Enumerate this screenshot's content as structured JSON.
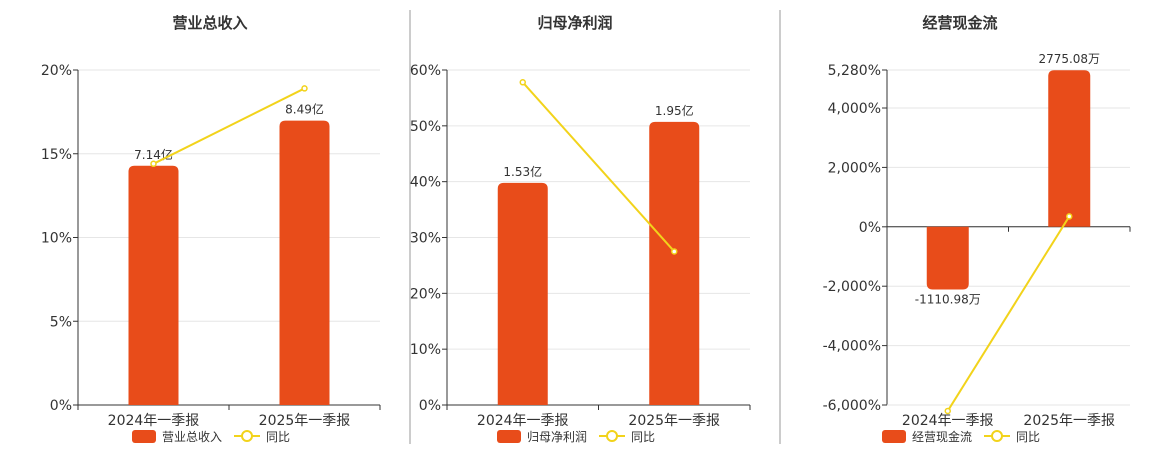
{
  "colors": {
    "bar": "#e84c1a",
    "line": "#f2d31b",
    "axis": "#333333",
    "grid": "#e6e6e6",
    "divider": "#999999"
  },
  "chart_data": [
    {
      "type": "bar",
      "title": "营业总收入",
      "categories": [
        "2024年一季报",
        "2025年一季报"
      ],
      "series": [
        {
          "name": "营业总收入",
          "kind": "bar",
          "values": [
            7.14,
            8.49
          ],
          "value_labels": [
            "7.14亿",
            "8.49亿"
          ],
          "unit": "亿"
        },
        {
          "name": "同比",
          "kind": "line",
          "values": [
            14.4,
            18.9
          ],
          "unit": "%"
        }
      ],
      "y_ticks": [
        "0%",
        "5%",
        "10%",
        "15%",
        "20%"
      ],
      "ylim": [
        0,
        20
      ],
      "grid": true,
      "legend": "bottom"
    },
    {
      "type": "bar",
      "title": "归母净利润",
      "categories": [
        "2024年一季报",
        "2025年一季报"
      ],
      "series": [
        {
          "name": "归母净利润",
          "kind": "bar",
          "values": [
            1.53,
            1.95
          ],
          "value_labels": [
            "1.53亿",
            "1.95亿"
          ],
          "unit": "亿"
        },
        {
          "name": "同比",
          "kind": "line",
          "values": [
            57.8,
            27.5
          ],
          "unit": "%"
        }
      ],
      "y_ticks": [
        "0%",
        "10%",
        "20%",
        "30%",
        "40%",
        "50%",
        "60%"
      ],
      "ylim": [
        0,
        60
      ],
      "grid": true,
      "legend": "bottom"
    },
    {
      "type": "bar",
      "title": "经营现金流",
      "categories": [
        "2024年一季报",
        "2025年一季报"
      ],
      "series": [
        {
          "name": "经营现金流",
          "kind": "bar",
          "values": [
            -1110.98,
            2775.08
          ],
          "value_labels": [
            "-1110.98万",
            "2775.08万"
          ],
          "unit": "万"
        },
        {
          "name": "同比",
          "kind": "line",
          "values": [
            -6200,
            350
          ],
          "unit": "%"
        }
      ],
      "y_ticks": [
        "-6,000%",
        "-4,000%",
        "-2,000%",
        "0%",
        "2,000%",
        "4,000%",
        "5,280%"
      ],
      "ylim": [
        -6000,
        5280
      ],
      "grid": true,
      "legend": "bottom"
    }
  ]
}
